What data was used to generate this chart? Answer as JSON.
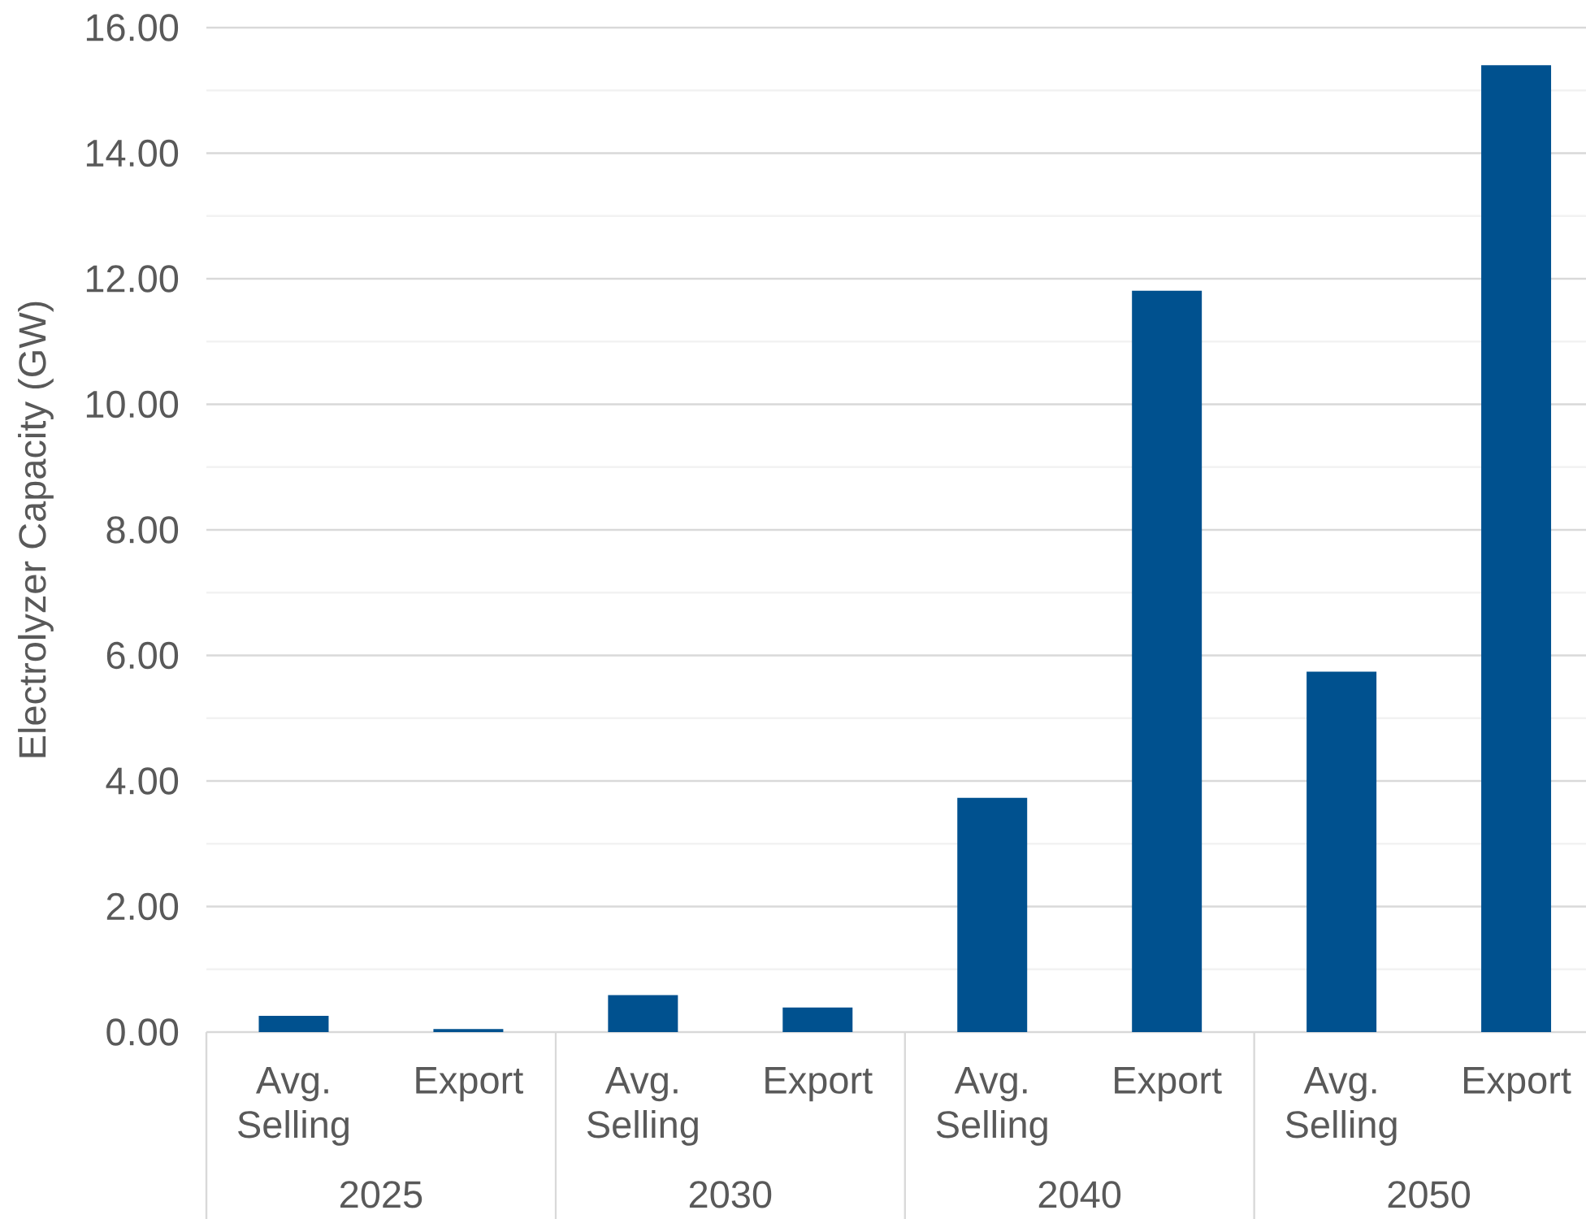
{
  "chart_data": {
    "type": "bar",
    "ylabel": "Electrolyzer Capacity (GW)",
    "categories": [
      "2025",
      "2030",
      "2040",
      "2050"
    ],
    "series": [
      {
        "name": "Avg. Selling",
        "color": "#00518f",
        "values": [
          0.26,
          0.59,
          3.73,
          5.74
        ]
      },
      {
        "name": "Export",
        "color": "#00518f",
        "values": [
          0.05,
          0.39,
          11.81,
          15.4
        ]
      }
    ],
    "ylim": [
      0,
      16
    ],
    "yticks": [
      {
        "value": 0,
        "label": "0.00"
      },
      {
        "value": 1,
        "label": null
      },
      {
        "value": 2,
        "label": "2.00"
      },
      {
        "value": 3,
        "label": null
      },
      {
        "value": 4,
        "label": "4.00"
      },
      {
        "value": 5,
        "label": null
      },
      {
        "value": 6,
        "label": "6.00"
      },
      {
        "value": 7,
        "label": null
      },
      {
        "value": 8,
        "label": "8.00"
      },
      {
        "value": 9,
        "label": null
      },
      {
        "value": 10,
        "label": "10.00"
      },
      {
        "value": 11,
        "label": null
      },
      {
        "value": 12,
        "label": "12.00"
      },
      {
        "value": 13,
        "label": null
      },
      {
        "value": 14,
        "label": "14.00"
      },
      {
        "value": 15,
        "label": null
      },
      {
        "value": 16,
        "label": "16.00"
      }
    ],
    "grid": "y"
  }
}
